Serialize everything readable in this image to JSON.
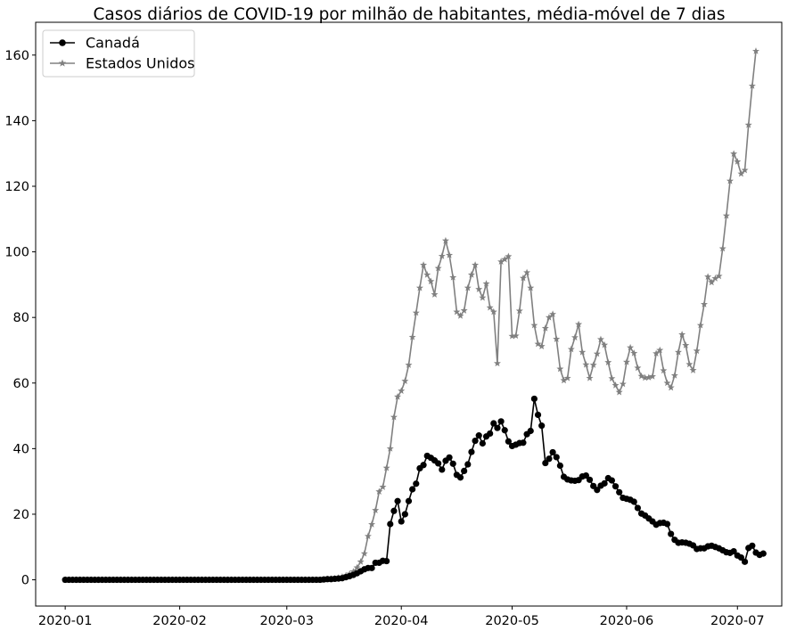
{
  "chart_data": {
    "type": "line",
    "title": "Casos diários de COVID-19 por milhão de habitantes, média-móvel de 7 dias",
    "xlabel": "",
    "ylabel": "",
    "x_axis": {
      "type": "date",
      "range": [
        "2019-12-24",
        "2020-07-13"
      ],
      "ticks": [
        "2020-01-01",
        "2020-02-01",
        "2020-03-01",
        "2020-04-01",
        "2020-05-01",
        "2020-06-01",
        "2020-07-01"
      ],
      "tick_labels": [
        "2020-01",
        "2020-02",
        "2020-03",
        "2020-04",
        "2020-05",
        "2020-06",
        "2020-07"
      ]
    },
    "y_axis": {
      "range": [
        -8,
        170
      ],
      "ticks": [
        0,
        20,
        40,
        60,
        80,
        100,
        120,
        140,
        160
      ],
      "tick_labels": [
        "0",
        "20",
        "40",
        "60",
        "80",
        "100",
        "120",
        "140",
        "160"
      ]
    },
    "grid": false,
    "legend": {
      "position": "top-left",
      "entries": [
        "Canadá",
        "Estados Unidos"
      ]
    },
    "x_start": "2020-01-01",
    "x_end": "2020-07-04",
    "series": [
      {
        "name": "Canadá",
        "color": "#000000",
        "marker": "circle",
        "values": [
          0,
          0,
          0,
          0,
          0,
          0,
          0,
          0,
          0,
          0,
          0,
          0,
          0,
          0,
          0,
          0,
          0,
          0,
          0,
          0,
          0,
          0,
          0,
          0,
          0,
          0,
          0,
          0,
          0,
          0,
          0,
          0,
          0,
          0,
          0,
          0,
          0,
          0,
          0,
          0,
          0,
          0,
          0,
          0,
          0,
          0,
          0,
          0,
          0,
          0,
          0,
          0,
          0,
          0,
          0,
          0,
          0,
          0,
          0,
          0,
          0,
          0,
          0,
          0,
          0,
          0,
          0,
          0,
          0,
          0,
          0.1,
          0.2,
          0.2,
          0.3,
          0.4,
          0.5,
          0.8,
          1.1,
          1.5,
          2,
          2.6,
          3.2,
          3.6,
          3.6,
          5.2,
          5.2,
          5.8,
          5.7,
          17,
          21,
          24,
          17.8,
          20,
          24,
          27.6,
          29.3,
          34,
          35,
          37.8,
          37.2,
          36.4,
          35.5,
          33.6,
          36.3,
          37.3,
          35.4,
          32,
          31.2,
          33.2,
          35.2,
          39,
          42.4,
          44,
          41.6,
          43.7,
          44.6,
          47.7,
          46.3,
          48.3,
          45.6,
          42.2,
          40.8,
          41.2,
          41.7,
          41.8,
          44.4,
          45.4,
          55.2,
          50.3,
          47,
          35.6,
          36.9,
          38.9,
          37.4,
          34.8,
          31.4,
          30.6,
          30.3,
          30.2,
          30.4,
          31.5,
          31.8,
          30.5,
          28.6,
          27.4,
          28.7,
          29.4,
          31,
          30.3,
          28.5,
          26.7,
          25,
          24.7,
          24.4,
          23.8,
          21.9,
          20.2,
          19.6,
          18.7,
          17.8,
          16.8,
          17.3,
          17.4,
          17,
          14,
          12.2,
          11.3,
          11.4,
          11.3,
          11,
          10.5,
          9.4,
          9.6,
          9.6,
          10.2,
          10.4,
          10,
          9.6,
          9,
          8.4,
          8.2,
          8.7,
          7.4,
          6.8,
          5.5,
          9.7,
          10.4,
          8.3,
          7.6,
          8
        ]
      },
      {
        "name": "Estados Unidos",
        "color": "#808080",
        "marker": "star",
        "values": [
          0,
          0,
          0,
          0,
          0,
          0,
          0,
          0,
          0,
          0,
          0,
          0,
          0,
          0,
          0,
          0,
          0,
          0,
          0,
          0,
          0,
          0,
          0,
          0,
          0,
          0,
          0,
          0,
          0,
          0,
          0,
          0,
          0,
          0,
          0,
          0,
          0,
          0,
          0,
          0,
          0,
          0,
          0,
          0,
          0,
          0,
          0,
          0,
          0,
          0,
          0,
          0,
          0,
          0,
          0,
          0,
          0,
          0,
          0,
          0,
          0,
          0,
          0,
          0,
          0,
          0,
          0,
          0,
          0,
          0,
          0.1,
          0.2,
          0.3,
          0.4,
          0.6,
          0.9,
          1.3,
          1.8,
          2.5,
          3.7,
          5.5,
          8,
          13.3,
          16.9,
          21.2,
          26.9,
          28.3,
          34.1,
          40,
          49.6,
          55.8,
          57.6,
          60.6,
          65.5,
          74,
          81.4,
          89,
          96,
          93,
          91,
          87,
          95,
          98.7,
          103.4,
          99,
          92.2,
          81.7,
          80.5,
          82.1,
          89,
          93,
          96,
          88.6,
          86,
          90.3,
          83,
          81.7,
          66,
          97,
          97.7,
          98.6,
          74.3,
          74.4,
          82,
          92,
          93.7,
          89,
          77.6,
          71.9,
          71.2,
          76.7,
          80,
          81,
          73.4,
          64.3,
          60.8,
          61.5,
          70.3,
          73.9,
          77.9,
          69.4,
          65.6,
          61.5,
          65.5,
          68.9,
          73.3,
          71.6,
          66.3,
          61.4,
          59.3,
          57.2,
          59.7,
          66.4,
          70.8,
          69.1,
          64.6,
          62.1,
          61.6,
          61.7,
          62,
          69,
          70,
          63.8,
          60,
          58.6,
          62.3,
          69.4,
          74.8,
          71.5,
          65.7,
          63.9,
          69.8,
          77.6,
          84,
          92.4,
          90.7,
          91.9,
          92.6,
          101,
          111,
          121.6,
          129.9,
          127.5,
          123.8,
          124.9,
          138.7,
          150.6,
          161.2
        ]
      }
    ]
  }
}
